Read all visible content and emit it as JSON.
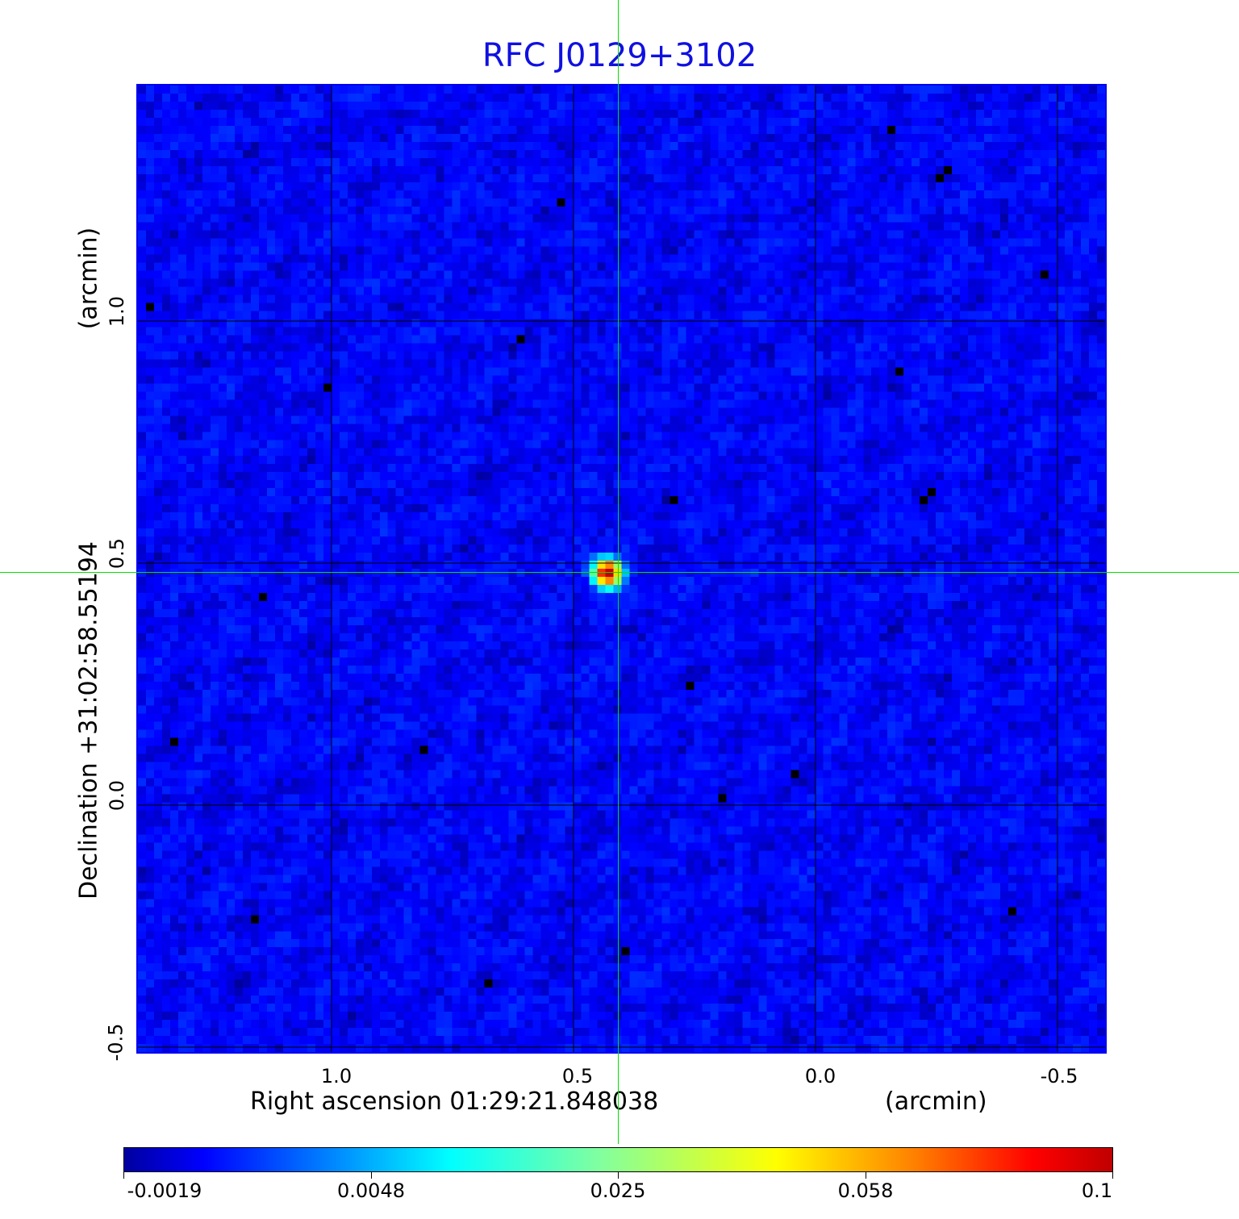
{
  "chart_data": {
    "type": "heatmap",
    "title": "RFC J0129+3102",
    "xlabel": "Right ascension  01:29:21.848038",
    "xunit": "(arcmin)",
    "ylabel": "Declination  +31:02:58.55194",
    "yunit": "(arcmin)",
    "x_ticks": [
      "1.0",
      "0.5",
      "0.0",
      "-0.5"
    ],
    "x_tick_values": [
      1.0,
      0.5,
      0.0,
      -0.5
    ],
    "y_ticks": [
      "1.0",
      "0.5",
      "0.0",
      "-0.5"
    ],
    "y_tick_values": [
      1.0,
      0.5,
      0.0,
      -0.5
    ],
    "xlim": [
      1.4,
      -0.6
    ],
    "ylim": [
      -0.52,
      1.5
    ],
    "grid": true,
    "colormap": "jet",
    "colorbar": {
      "placement": "bottom",
      "ticks": [
        "-0.0019",
        "0.0048",
        "0.025",
        "0.058",
        "0.1"
      ],
      "range": [
        -0.0019,
        0.1
      ]
    },
    "source_peak": {
      "x": 0.43,
      "y": 0.48,
      "value": 0.1
    },
    "background_level": 0.0,
    "crosshair": {
      "x": 0.43,
      "y": 0.48,
      "color": "#00e000"
    },
    "colors": {
      "title": "#1010e0",
      "frame": "#0000ee",
      "grid": "#000000"
    }
  }
}
